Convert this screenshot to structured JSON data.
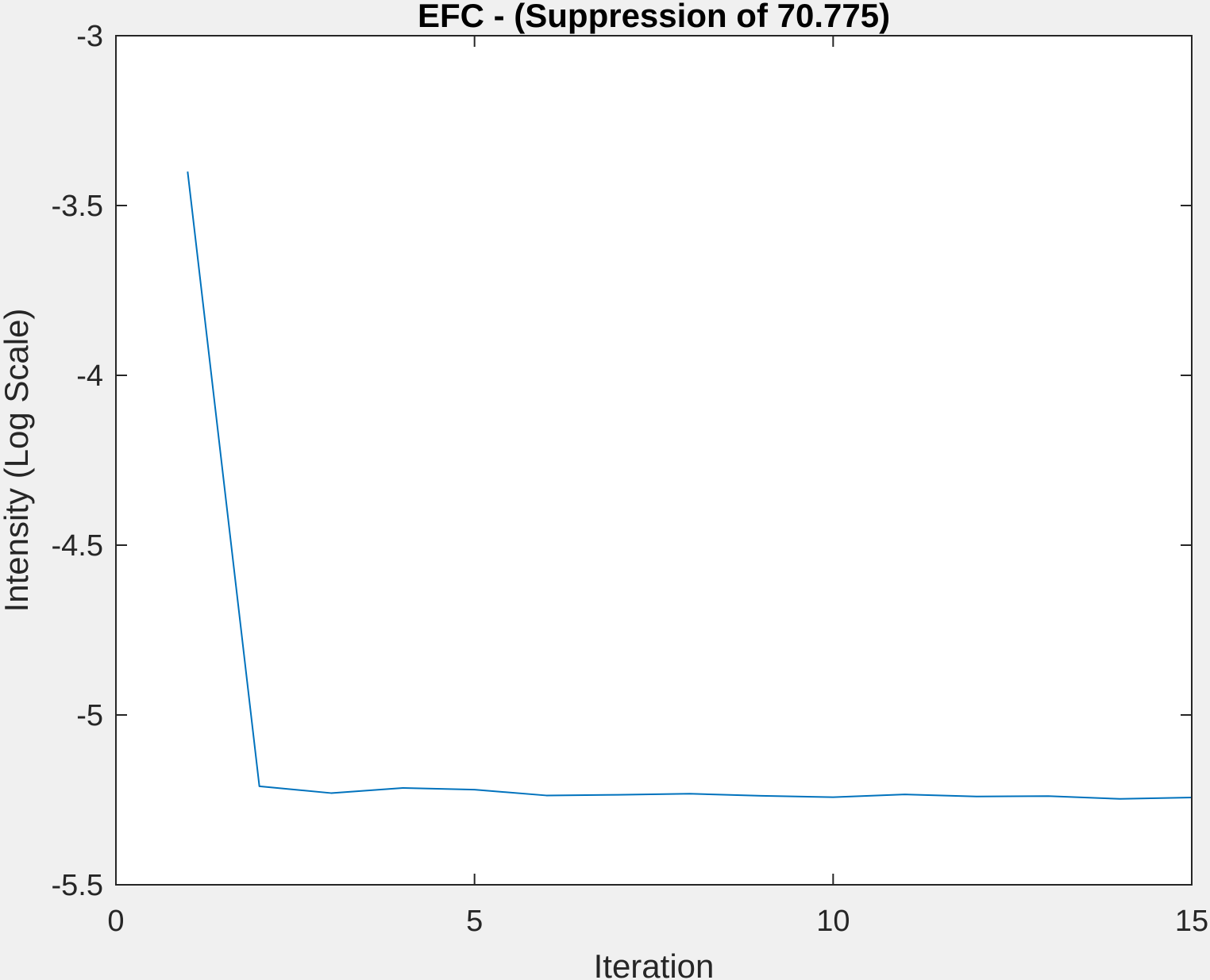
{
  "chart_data": {
    "type": "line",
    "title": "EFC -  (Suppression of 70.775)",
    "xlabel": "Iteration",
    "ylabel": "Intensity (Log Scale)",
    "xlim": [
      0,
      15
    ],
    "ylim": [
      -5.5,
      -3
    ],
    "xticks": [
      0,
      5,
      10,
      15
    ],
    "xtick_labels": [
      "0",
      "5",
      "10",
      "15"
    ],
    "yticks": [
      -3,
      -3.5,
      -4,
      -4.5,
      -5,
      -5.5
    ],
    "ytick_labels": [
      "-3",
      "-3.5",
      "-4",
      "-4.5",
      "-5",
      "-5.5"
    ],
    "grid": false,
    "series": [
      {
        "color": "#0072bd",
        "x": [
          1,
          2,
          3,
          4,
          5,
          6,
          7,
          8,
          9,
          10,
          11,
          12,
          13,
          14,
          15
        ],
        "y": [
          -3.4,
          -5.21,
          -5.23,
          -5.215,
          -5.22,
          -5.237,
          -5.235,
          -5.232,
          -5.238,
          -5.242,
          -5.234,
          -5.24,
          -5.239,
          -5.247,
          -5.243
        ]
      }
    ]
  },
  "colors": {
    "figure_background": "#f0f0f0",
    "axes_background": "#ffffff",
    "axes_color": "#262626",
    "line_color": "#0072bd"
  }
}
